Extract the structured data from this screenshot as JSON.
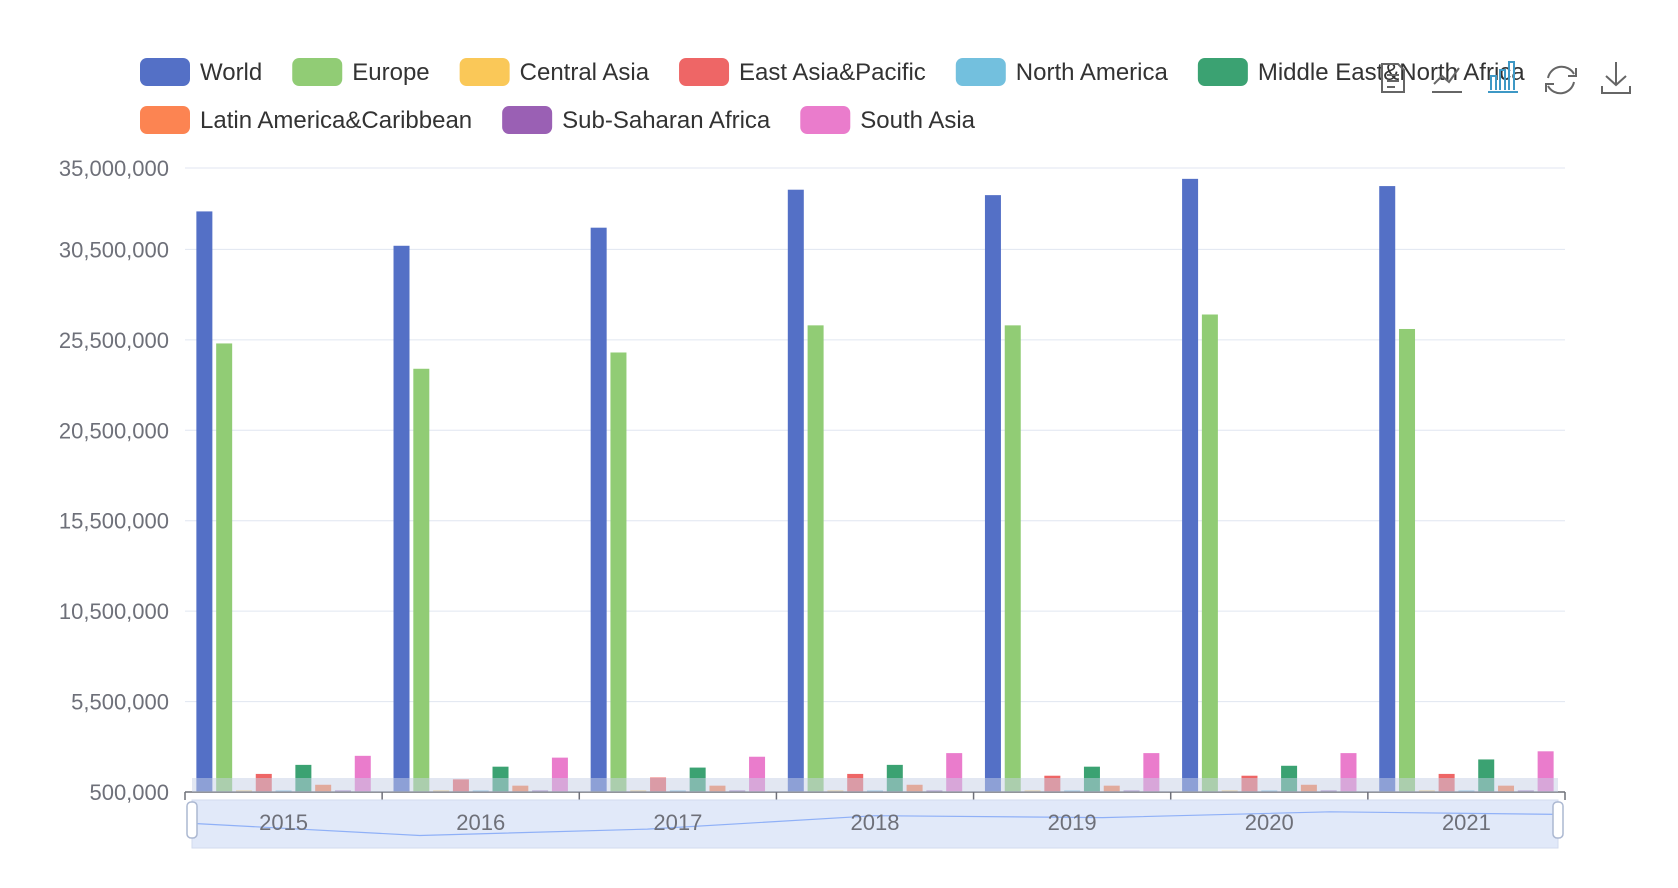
{
  "chart_data": {
    "type": "bar",
    "title": "",
    "xlabel": "",
    "ylabel": "",
    "categories": [
      "2015",
      "2016",
      "2017",
      "2018",
      "2019",
      "2020",
      "2021"
    ],
    "ylim": [
      500000,
      35000000
    ],
    "y_ticks": [
      "500,000",
      "5,500,000",
      "10,500,000",
      "15,500,000",
      "20,500,000",
      "25,500,000",
      "30,500,000",
      "35,000,000"
    ],
    "y_tick_values": [
      500000,
      5500000,
      10500000,
      15500000,
      20500000,
      25500000,
      30500000,
      35000000
    ],
    "grid": true,
    "legend_position": "top",
    "series": [
      {
        "name": "World",
        "color": "#5470c6",
        "values": [
          32600000,
          30700000,
          31700000,
          33800000,
          33500000,
          34400000,
          34000000
        ]
      },
      {
        "name": "Europe",
        "color": "#91cc75",
        "values": [
          25300000,
          23900000,
          24800000,
          26300000,
          26300000,
          26900000,
          26100000
        ]
      },
      {
        "name": "Central Asia",
        "color": "#fac858",
        "values": [
          120000,
          110000,
          115000,
          120000,
          118000,
          120000,
          115000
        ]
      },
      {
        "name": "East Asia&Pacific",
        "color": "#ee6666",
        "values": [
          1500000,
          1200000,
          1300000,
          1500000,
          1400000,
          1400000,
          1500000
        ]
      },
      {
        "name": "North America",
        "color": "#73c0de",
        "values": [
          250000,
          240000,
          245000,
          255000,
          250000,
          245000,
          240000
        ]
      },
      {
        "name": "Middle East&North Africa",
        "color": "#3ba272",
        "values": [
          2000000,
          1900000,
          1850000,
          2000000,
          1900000,
          1950000,
          2300000
        ]
      },
      {
        "name": "Latin America&Caribbean",
        "color": "#fc8452",
        "values": [
          900000,
          850000,
          850000,
          900000,
          850000,
          900000,
          850000
        ]
      },
      {
        "name": "Sub-Saharan Africa",
        "color": "#9a60b4",
        "values": [
          180000,
          170000,
          170000,
          180000,
          175000,
          180000,
          175000
        ]
      },
      {
        "name": "South Asia",
        "color": "#ea7ccc",
        "values": [
          2500000,
          2400000,
          2450000,
          2650000,
          2650000,
          2650000,
          2750000
        ]
      }
    ]
  },
  "legend": {
    "items": [
      {
        "label": "World",
        "color": "#5470c6"
      },
      {
        "label": "Europe",
        "color": "#91cc75"
      },
      {
        "label": "Central Asia",
        "color": "#fac858"
      },
      {
        "label": "East Asia&Pacific",
        "color": "#ee6666"
      },
      {
        "label": "North America",
        "color": "#73c0de"
      },
      {
        "label": "Middle East&North Africa",
        "color": "#3ba272"
      },
      {
        "label": "Latin America&Caribbean",
        "color": "#fc8452"
      },
      {
        "label": "Sub-Saharan Africa",
        "color": "#9a60b4"
      },
      {
        "label": "South Asia",
        "color": "#ea7ccc"
      }
    ]
  },
  "toolbox": {
    "icons": [
      "data-view-icon",
      "line-chart-icon",
      "bar-chart-icon",
      "refresh-icon",
      "download-icon"
    ],
    "active_color": "#3e98c5",
    "color": "#666666"
  },
  "datazoom": {
    "range_start_label": "2015",
    "range_end_label": "2021",
    "start_percent": 0,
    "end_percent": 100
  }
}
